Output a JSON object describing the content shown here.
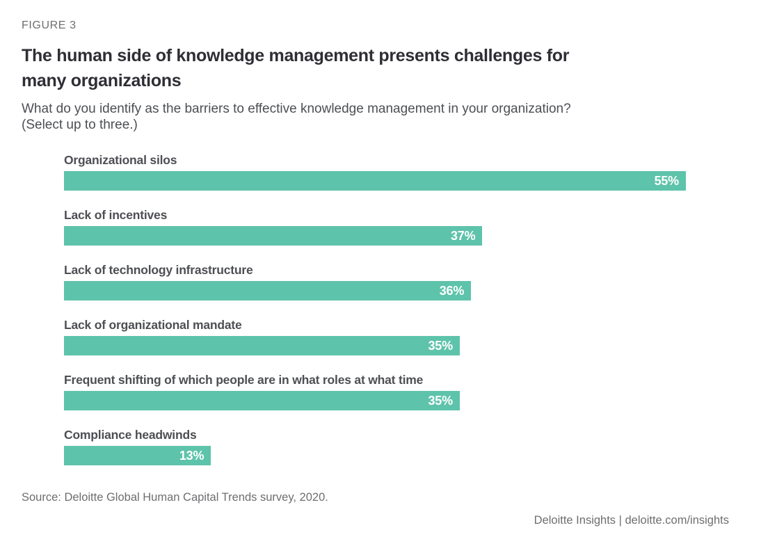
{
  "figure_label": "FIGURE 3",
  "title_lines": [
    "The human side of knowledge management presents challenges for",
    "many organizations"
  ],
  "question_lines": [
    "What do you identify as the barriers to effective knowledge management in your organization?",
    "(Select up to three.)"
  ],
  "source": "Source: Deloitte Global Human Capital Trends survey, 2020.",
  "footer": "Deloitte Insights | deloitte.com/insights",
  "colors": {
    "bar": "#5EC3AB",
    "bar_value_text": "#FFFFFF",
    "title": "#2E2E34",
    "label": "#4D4F53",
    "muted": "#6D6E71"
  },
  "chart_data": {
    "type": "bar",
    "orientation": "horizontal",
    "title": "The human side of knowledge management presents challenges for many organizations",
    "subtitle": "What do you identify as the barriers to effective knowledge management in your organization? (Select up to three.)",
    "categories": [
      "Organizational silos",
      "Lack of incentives",
      "Lack of technology infrastructure",
      "Lack of organizational mandate",
      "Frequent shifting of which people are in what roles at what time",
      "Compliance headwinds"
    ],
    "values": [
      55,
      37,
      36,
      35,
      35,
      13
    ],
    "value_suffix": "%",
    "xlim": [
      0,
      55
    ],
    "value_labels": "inside-bar-right",
    "grid": false,
    "legend": false,
    "source": "Source: Deloitte Global Human Capital Trends survey, 2020."
  }
}
